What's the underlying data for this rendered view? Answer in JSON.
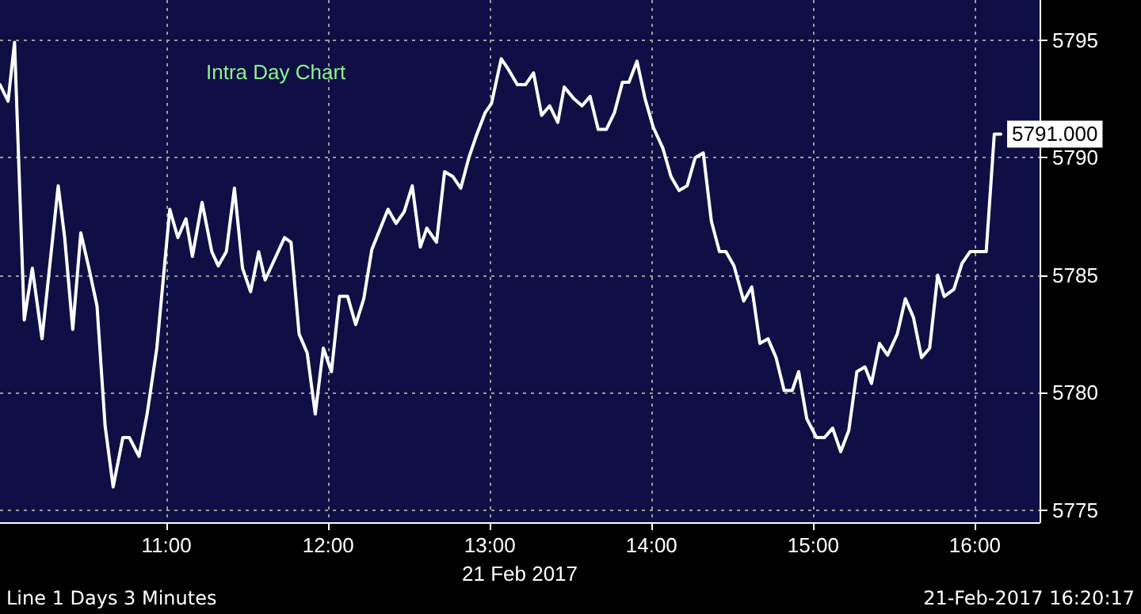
{
  "chart_data": {
    "type": "line",
    "title": "Intra Day Chart",
    "xlabel": "21 Feb 2017",
    "x": [
      9.97,
      10.02,
      10.06,
      10.12,
      10.17,
      10.23,
      10.33,
      10.37,
      10.42,
      10.47,
      10.52,
      10.57,
      10.62,
      10.67,
      10.73,
      10.77,
      10.83,
      10.88,
      10.94,
      11.02,
      11.07,
      11.12,
      11.16,
      11.22,
      11.28,
      11.32,
      11.37,
      11.42,
      11.47,
      11.52,
      11.57,
      11.61,
      11.73,
      11.77,
      11.82,
      11.87,
      11.92,
      11.97,
      12.02,
      12.07,
      12.12,
      12.17,
      12.22,
      12.27,
      12.37,
      12.42,
      12.47,
      12.52,
      12.57,
      12.61,
      12.67,
      12.72,
      12.77,
      12.82,
      12.87,
      12.92,
      12.97,
      13.01,
      13.07,
      13.11,
      13.17,
      13.22,
      13.27,
      13.32,
      13.37,
      13.42,
      13.46,
      13.52,
      13.57,
      13.62,
      13.67,
      13.72,
      13.77,
      13.82,
      13.86,
      13.91,
      13.96,
      14.01,
      14.07,
      14.12,
      14.17,
      14.22,
      14.27,
      14.32,
      14.37,
      14.42,
      14.46,
      14.51,
      14.57,
      14.62,
      14.67,
      14.72,
      14.77,
      14.82,
      14.87,
      14.91,
      14.96,
      15.02,
      15.07,
      15.12,
      15.17,
      15.22,
      15.27,
      15.32,
      15.36,
      15.41,
      15.46,
      15.52,
      15.57,
      15.62,
      15.67,
      15.72,
      15.77,
      15.81,
      15.87,
      15.92,
      15.97,
      16.07,
      16.12,
      16.16
    ],
    "series": [
      {
        "color": "#ffffff",
        "values": [
          5793.1,
          5792.4,
          5794.9,
          5783.1,
          5785.3,
          5782.3,
          5788.8,
          5786.6,
          5782.7,
          5786.8,
          5785.3,
          5783.7,
          5778.6,
          5776.0,
          5778.1,
          5778.1,
          5777.3,
          5779.1,
          5781.9,
          5787.8,
          5786.6,
          5787.4,
          5785.8,
          5788.1,
          5786.0,
          5785.4,
          5786.0,
          5788.7,
          5785.3,
          5784.3,
          5786.0,
          5784.8,
          5786.6,
          5786.4,
          5782.5,
          5781.7,
          5779.1,
          5781.9,
          5780.9,
          5784.1,
          5784.1,
          5782.9,
          5784.0,
          5786.1,
          5787.8,
          5787.2,
          5787.7,
          5788.8,
          5786.2,
          5787.0,
          5786.4,
          5789.4,
          5789.2,
          5788.7,
          5790.0,
          5791.0,
          5791.9,
          5792.3,
          5794.2,
          5793.8,
          5793.1,
          5793.1,
          5793.6,
          5791.8,
          5792.2,
          5791.5,
          5793.0,
          5792.5,
          5792.2,
          5792.6,
          5791.2,
          5791.2,
          5791.9,
          5793.2,
          5793.2,
          5794.1,
          5792.5,
          5791.3,
          5790.4,
          5789.2,
          5788.6,
          5788.8,
          5790.0,
          5790.2,
          5787.3,
          5786.0,
          5786.0,
          5785.4,
          5783.9,
          5784.5,
          5782.1,
          5782.3,
          5781.5,
          5780.1,
          5780.1,
          5780.9,
          5778.9,
          5778.1,
          5778.1,
          5778.5,
          5777.5,
          5778.4,
          5780.9,
          5781.1,
          5780.4,
          5782.1,
          5781.6,
          5782.5,
          5784.0,
          5783.2,
          5781.5,
          5781.9,
          5785.0,
          5784.1,
          5784.4,
          5785.5,
          5786.0,
          5786.0,
          5791.0,
          5791.0
        ],
        "value_labels": [
          null,
          null,
          null,
          null,
          null,
          null,
          null,
          null,
          null,
          null,
          null,
          null,
          null,
          null,
          null,
          null,
          null,
          null,
          null,
          null,
          null,
          null,
          null,
          null,
          null,
          null,
          null,
          null,
          null,
          null,
          null,
          null,
          null,
          null,
          null,
          null,
          null,
          null,
          null,
          null,
          null,
          null,
          null,
          null,
          null,
          null,
          null,
          null,
          null,
          null,
          null,
          null,
          null,
          null,
          null,
          null,
          null,
          null,
          null,
          null,
          null,
          null,
          null,
          null,
          null,
          null,
          null,
          null,
          null,
          null,
          null,
          null,
          null,
          null,
          null,
          null,
          null,
          null,
          null,
          null,
          null,
          null,
          null,
          null,
          null,
          null,
          null,
          null,
          null,
          null,
          null,
          null,
          null,
          null,
          null,
          null,
          null,
          null,
          null,
          null,
          null,
          null,
          null,
          null,
          null,
          null,
          null,
          null,
          null,
          null,
          null,
          null,
          null,
          null,
          null,
          null,
          null,
          null,
          null,
          "5791.000"
        ]
      }
    ],
    "xlim": [
      9.97,
      16.4
    ],
    "xticks": [
      {
        "value": 11,
        "label": "11:00"
      },
      {
        "value": 12,
        "label": "12:00"
      },
      {
        "value": 13,
        "label": "13:00"
      },
      {
        "value": 14,
        "label": "14:00"
      },
      {
        "value": 15,
        "label": "15:00"
      },
      {
        "value": 16,
        "label": "16:00"
      }
    ],
    "ylim": [
      5774.5,
      5796.7
    ],
    "yticks": [
      5775,
      5780,
      5785,
      5790,
      5795
    ],
    "grid": true,
    "marker": "none",
    "line_style": "solid",
    "annotations": [
      "Line 1 Days 3 Minutes",
      "21-Feb-2017 16:20:17"
    ]
  }
}
